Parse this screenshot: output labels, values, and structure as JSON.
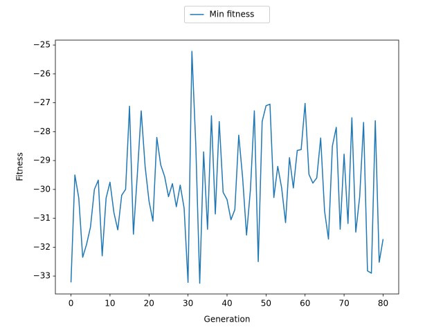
{
  "chart_data": {
    "type": "line",
    "x_label": "Generation",
    "y_label": "Fitness",
    "legend": "upper center outside",
    "x": [
      0,
      1,
      2,
      3,
      4,
      5,
      6,
      7,
      8,
      9,
      10,
      11,
      12,
      13,
      14,
      15,
      16,
      17,
      18,
      19,
      20,
      21,
      22,
      23,
      24,
      25,
      26,
      27,
      28,
      29,
      30,
      31,
      32,
      33,
      34,
      35,
      36,
      37,
      38,
      39,
      40,
      41,
      42,
      43,
      44,
      45,
      46,
      47,
      48,
      49,
      50,
      51,
      52,
      53,
      54,
      55,
      56,
      57,
      58,
      59,
      60,
      61,
      62,
      63,
      64,
      65,
      66,
      67,
      68,
      69,
      70,
      71,
      72,
      73,
      74,
      75,
      76,
      77,
      78,
      79,
      80
    ],
    "series": [
      {
        "name": "Min fitness",
        "color": "#1f77b4",
        "values": [
          -33.22,
          -29.5,
          -30.3,
          -32.35,
          -31.9,
          -31.3,
          -30.0,
          -29.68,
          -32.3,
          -30.3,
          -29.75,
          -30.8,
          -31.4,
          -30.2,
          -30.0,
          -27.12,
          -31.55,
          -29.5,
          -27.28,
          -29.2,
          -30.4,
          -31.1,
          -28.2,
          -29.15,
          -29.55,
          -30.25,
          -29.8,
          -30.6,
          -29.85,
          -30.65,
          -33.22,
          -25.22,
          -28.5,
          -33.25,
          -28.7,
          -31.38,
          -27.45,
          -30.85,
          -27.65,
          -30.1,
          -30.35,
          -31.05,
          -30.7,
          -28.12,
          -29.6,
          -31.58,
          -30.0,
          -27.28,
          -32.5,
          -27.65,
          -27.1,
          -27.05,
          -30.28,
          -29.2,
          -29.95,
          -31.15,
          -28.9,
          -29.95,
          -28.65,
          -28.62,
          -27.02,
          -29.48,
          -29.78,
          -29.6,
          -28.22,
          -30.75,
          -31.72,
          -28.5,
          -27.85,
          -31.38,
          -28.78,
          -31.18,
          -27.52,
          -31.48,
          -30.25,
          -27.68,
          -32.82,
          -32.9,
          -27.62,
          -32.52,
          -31.72
        ]
      }
    ],
    "xlim": [
      -4,
      84
    ],
    "ylim": [
      -33.62,
      -24.83
    ],
    "xticks": [
      0,
      10,
      20,
      30,
      40,
      50,
      60,
      70,
      80
    ],
    "yticks": [
      {
        "value": -25,
        "label": "−25"
      },
      {
        "value": -26,
        "label": "−26"
      },
      {
        "value": -27,
        "label": "−27"
      },
      {
        "value": -28,
        "label": "−28"
      },
      {
        "value": -29,
        "label": "−29"
      },
      {
        "value": -30,
        "label": "−30"
      },
      {
        "value": -31,
        "label": "−31"
      },
      {
        "value": -32,
        "label": "−32"
      },
      {
        "value": -33,
        "label": "−33"
      }
    ]
  }
}
